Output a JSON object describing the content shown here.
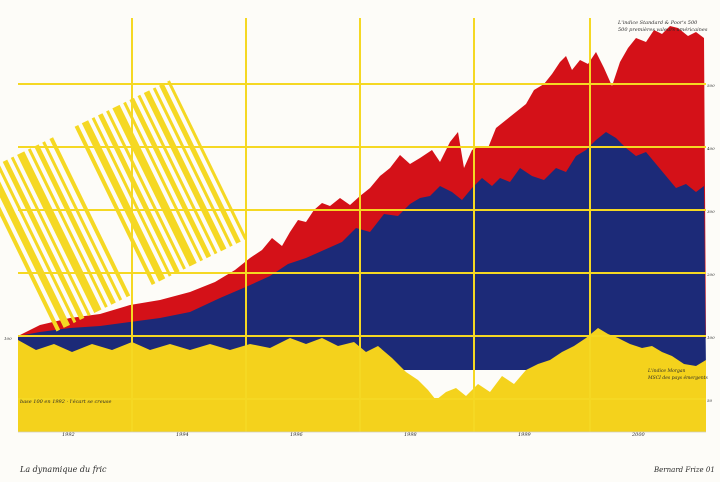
{
  "painting": {
    "title": "La dynamique du fric",
    "signature": "Bernard Frize 01",
    "note_top_line1": "L'indice Standard & Poor's 500",
    "note_top_line2": "500 premières valeurs américaines",
    "note_base": "base 100 en 1992 · l'écart se creuse",
    "note_right_line1": "L'indice Morgan",
    "note_right_line2": "MSCI des pays émergents",
    "years": [
      "1992",
      "1994",
      "1996",
      "1998",
      "1999",
      "2000"
    ],
    "tick_100": "100",
    "tick_right": [
      "500",
      "400",
      "300",
      "200",
      "100",
      "50"
    ],
    "colors": {
      "background": "#fdfcf8",
      "red": "#d41118",
      "navy": "#1c2a78",
      "yellow": "#f4d21c",
      "grid": "#f5d823",
      "ink": "#2a2a2a"
    }
  }
}
